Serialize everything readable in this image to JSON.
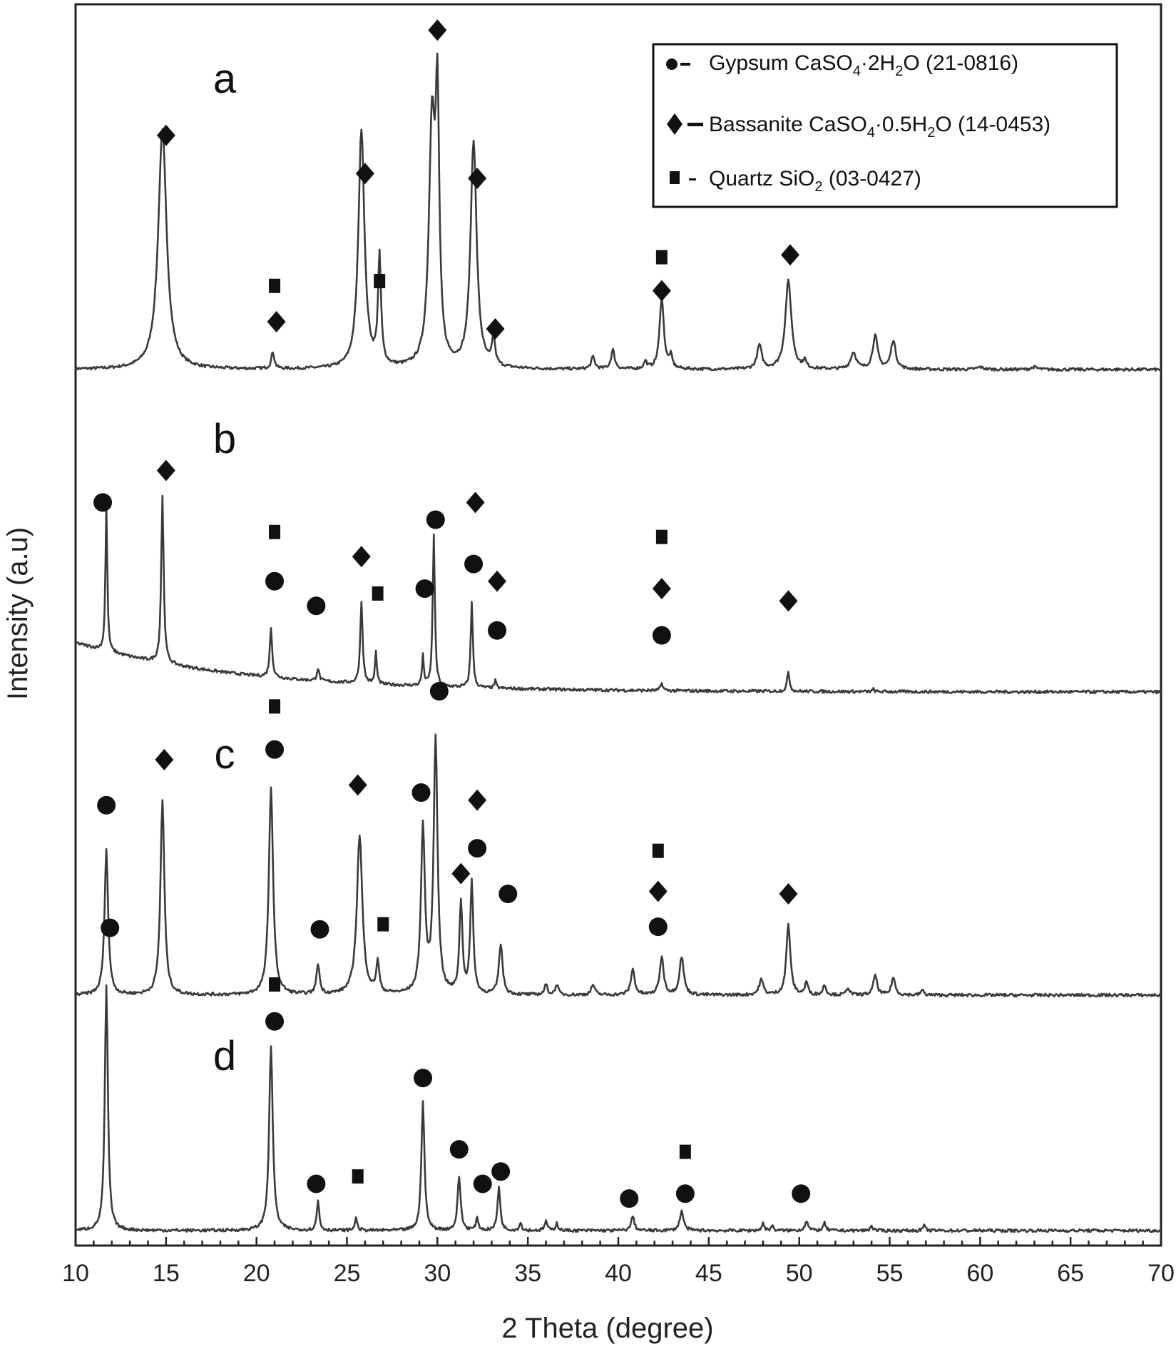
{
  "chart_data": {
    "type": "line",
    "xlabel": "2 Theta (degree)",
    "ylabel": "Intensity (a.u)",
    "xlim": [
      10,
      70
    ],
    "xticks": [
      "10",
      "15",
      "20",
      "25",
      "30",
      "35",
      "40",
      "45",
      "50",
      "55",
      "60",
      "65",
      "70"
    ],
    "legend": {
      "placement": "top-right",
      "entries": [
        {
          "marker": "circle",
          "text": "Gypsum CaSO",
          "sub1": "4",
          "mid": "·2H",
          "sub2": "2",
          "tail": "O (21-0816)"
        },
        {
          "marker": "diamond",
          "text": "Bassanite CaSO",
          "sub1": "4",
          "mid": "·0.5H",
          "sub2": "2",
          "tail": "O (14-0453)"
        },
        {
          "marker": "square",
          "text": "Quartz SiO",
          "sub1": "2",
          "mid": "",
          "sub2": "",
          "tail": " (03-0427)"
        }
      ]
    },
    "series": [
      {
        "name": "a",
        "peaks": [
          [
            14.8,
            1.0,
            0.28
          ],
          [
            20.9,
            0.07,
            0.1
          ],
          [
            25.8,
            1.0,
            0.2
          ],
          [
            26.8,
            0.45,
            0.1
          ],
          [
            29.7,
            1.0,
            0.2
          ],
          [
            30.0,
            1.0,
            0.12
          ],
          [
            32.0,
            0.95,
            0.2
          ],
          [
            33.1,
            0.12,
            0.1
          ],
          [
            38.6,
            0.05,
            0.12
          ],
          [
            39.7,
            0.08,
            0.12
          ],
          [
            41.5,
            0.03,
            0.1
          ],
          [
            42.4,
            0.3,
            0.14
          ],
          [
            42.9,
            0.05,
            0.1
          ],
          [
            47.8,
            0.1,
            0.15
          ],
          [
            49.4,
            0.37,
            0.2
          ],
          [
            50.3,
            0.03,
            0.1
          ],
          [
            53.0,
            0.07,
            0.18
          ],
          [
            54.2,
            0.14,
            0.16
          ],
          [
            55.2,
            0.12,
            0.16
          ],
          [
            60.0,
            0.01,
            0.2
          ],
          [
            63.0,
            0.01,
            0.2
          ]
        ],
        "markers": [
          {
            "shape": "diamond",
            "x": 15.0,
            "y": 0.98
          },
          {
            "shape": "square",
            "x": 21.0,
            "y": 0.35
          },
          {
            "shape": "diamond",
            "x": 21.1,
            "y": 0.2
          },
          {
            "shape": "diamond",
            "x": 26.0,
            "y": 0.82
          },
          {
            "shape": "square",
            "x": 26.8,
            "y": 0.37
          },
          {
            "shape": "diamond",
            "x": 30.0,
            "y": 1.42
          },
          {
            "shape": "diamond",
            "x": 32.2,
            "y": 0.8
          },
          {
            "shape": "diamond",
            "x": 33.2,
            "y": 0.17
          },
          {
            "shape": "square",
            "x": 42.4,
            "y": 0.47
          },
          {
            "shape": "diamond",
            "x": 42.4,
            "y": 0.33
          },
          {
            "shape": "diamond",
            "x": 49.5,
            "y": 0.48
          }
        ]
      },
      {
        "name": "b",
        "baseline_rise": 0.2,
        "peaks": [
          [
            11.7,
            0.6,
            0.06
          ],
          [
            14.8,
            0.68,
            0.08
          ],
          [
            20.8,
            0.2,
            0.08
          ],
          [
            23.4,
            0.05,
            0.08
          ],
          [
            25.8,
            0.33,
            0.08
          ],
          [
            26.6,
            0.13,
            0.06
          ],
          [
            29.2,
            0.12,
            0.06
          ],
          [
            29.8,
            0.62,
            0.07
          ],
          [
            31.9,
            0.35,
            0.07
          ],
          [
            33.2,
            0.03,
            0.06
          ],
          [
            42.4,
            0.03,
            0.08
          ],
          [
            49.4,
            0.08,
            0.08
          ],
          [
            54.1,
            0.01,
            0.06
          ]
        ],
        "markers": [
          {
            "shape": "circle",
            "x": 11.5,
            "y": 0.77
          },
          {
            "shape": "diamond",
            "x": 15.0,
            "y": 0.9
          },
          {
            "shape": "square",
            "x": 21.0,
            "y": 0.65
          },
          {
            "shape": "circle",
            "x": 21.0,
            "y": 0.45
          },
          {
            "shape": "circle",
            "x": 23.3,
            "y": 0.35
          },
          {
            "shape": "diamond",
            "x": 25.8,
            "y": 0.55
          },
          {
            "shape": "square",
            "x": 26.7,
            "y": 0.4
          },
          {
            "shape": "circle",
            "x": 29.3,
            "y": 0.42
          },
          {
            "shape": "circle",
            "x": 29.9,
            "y": 0.7
          },
          {
            "shape": "diamond",
            "x": 32.1,
            "y": 0.77
          },
          {
            "shape": "circle",
            "x": 32.0,
            "y": 0.52
          },
          {
            "shape": "diamond",
            "x": 33.3,
            "y": 0.45
          },
          {
            "shape": "circle",
            "x": 33.3,
            "y": 0.25
          },
          {
            "shape": "square",
            "x": 42.4,
            "y": 0.63
          },
          {
            "shape": "diamond",
            "x": 42.4,
            "y": 0.42
          },
          {
            "shape": "circle",
            "x": 42.4,
            "y": 0.23
          },
          {
            "shape": "diamond",
            "x": 49.4,
            "y": 0.37
          }
        ]
      },
      {
        "name": "c",
        "peaks": [
          [
            11.7,
            0.57,
            0.12
          ],
          [
            14.8,
            0.77,
            0.13
          ],
          [
            20.8,
            0.82,
            0.14
          ],
          [
            23.4,
            0.12,
            0.1
          ],
          [
            25.7,
            0.63,
            0.18
          ],
          [
            26.7,
            0.12,
            0.1
          ],
          [
            29.2,
            0.65,
            0.13
          ],
          [
            29.9,
            1.0,
            0.13
          ],
          [
            31.3,
            0.36,
            0.1
          ],
          [
            31.9,
            0.44,
            0.1
          ],
          [
            33.5,
            0.2,
            0.12
          ],
          [
            36.0,
            0.04,
            0.1
          ],
          [
            36.6,
            0.04,
            0.1
          ],
          [
            38.6,
            0.04,
            0.12
          ],
          [
            40.8,
            0.1,
            0.13
          ],
          [
            42.4,
            0.15,
            0.13
          ],
          [
            43.5,
            0.15,
            0.14
          ],
          [
            47.9,
            0.06,
            0.14
          ],
          [
            49.4,
            0.28,
            0.13
          ],
          [
            50.4,
            0.05,
            0.1
          ],
          [
            51.4,
            0.04,
            0.1
          ],
          [
            52.7,
            0.03,
            0.1
          ],
          [
            54.2,
            0.08,
            0.12
          ],
          [
            55.2,
            0.07,
            0.12
          ],
          [
            56.8,
            0.02,
            0.1
          ]
        ],
        "markers": [
          {
            "shape": "circle",
            "x": 11.7,
            "y": 0.75
          },
          {
            "shape": "diamond",
            "x": 14.9,
            "y": 0.93
          },
          {
            "shape": "square",
            "x": 21.0,
            "y": 1.14
          },
          {
            "shape": "circle",
            "x": 21.0,
            "y": 0.97
          },
          {
            "shape": "circle",
            "x": 23.5,
            "y": 0.26
          },
          {
            "shape": "diamond",
            "x": 25.6,
            "y": 0.83
          },
          {
            "shape": "square",
            "x": 27.0,
            "y": 0.28
          },
          {
            "shape": "circle",
            "x": 29.1,
            "y": 0.8
          },
          {
            "shape": "circle",
            "x": 30.1,
            "y": 1.2
          },
          {
            "shape": "diamond",
            "x": 32.2,
            "y": 0.77
          },
          {
            "shape": "circle",
            "x": 32.2,
            "y": 0.58
          },
          {
            "shape": "diamond",
            "x": 31.3,
            "y": 0.48
          },
          {
            "shape": "circle",
            "x": 33.9,
            "y": 0.4
          },
          {
            "shape": "square",
            "x": 42.2,
            "y": 0.57
          },
          {
            "shape": "diamond",
            "x": 42.2,
            "y": 0.41
          },
          {
            "shape": "circle",
            "x": 42.2,
            "y": 0.27
          },
          {
            "shape": "diamond",
            "x": 49.4,
            "y": 0.4
          }
        ]
      },
      {
        "name": "d",
        "peaks": [
          [
            11.7,
            1.0,
            0.1
          ],
          [
            20.8,
            0.75,
            0.12
          ],
          [
            23.4,
            0.12,
            0.08
          ],
          [
            25.5,
            0.05,
            0.08
          ],
          [
            29.2,
            0.53,
            0.1
          ],
          [
            31.2,
            0.22,
            0.1
          ],
          [
            32.2,
            0.05,
            0.08
          ],
          [
            33.4,
            0.18,
            0.09
          ],
          [
            34.6,
            0.03,
            0.08
          ],
          [
            36.0,
            0.04,
            0.08
          ],
          [
            36.6,
            0.03,
            0.08
          ],
          [
            40.8,
            0.06,
            0.1
          ],
          [
            43.5,
            0.08,
            0.12
          ],
          [
            48.0,
            0.03,
            0.08
          ],
          [
            48.5,
            0.02,
            0.08
          ],
          [
            50.4,
            0.04,
            0.1
          ],
          [
            51.4,
            0.03,
            0.08
          ],
          [
            54.0,
            0.02,
            0.08
          ],
          [
            56.9,
            0.02,
            0.08
          ]
        ],
        "markers": [
          {
            "shape": "circle",
            "x": 11.9,
            "y": 1.23
          },
          {
            "shape": "square",
            "x": 21.0,
            "y": 1.0
          },
          {
            "shape": "circle",
            "x": 21.0,
            "y": 0.85
          },
          {
            "shape": "circle",
            "x": 23.3,
            "y": 0.19
          },
          {
            "shape": "square",
            "x": 25.6,
            "y": 0.22
          },
          {
            "shape": "circle",
            "x": 29.2,
            "y": 0.62
          },
          {
            "shape": "circle",
            "x": 31.2,
            "y": 0.33
          },
          {
            "shape": "circle",
            "x": 32.5,
            "y": 0.19
          },
          {
            "shape": "circle",
            "x": 33.5,
            "y": 0.24
          },
          {
            "shape": "circle",
            "x": 40.6,
            "y": 0.13
          },
          {
            "shape": "square",
            "x": 43.7,
            "y": 0.32
          },
          {
            "shape": "circle",
            "x": 43.7,
            "y": 0.15
          },
          {
            "shape": "circle",
            "x": 50.1,
            "y": 0.15
          }
        ]
      }
    ],
    "grid": false
  }
}
